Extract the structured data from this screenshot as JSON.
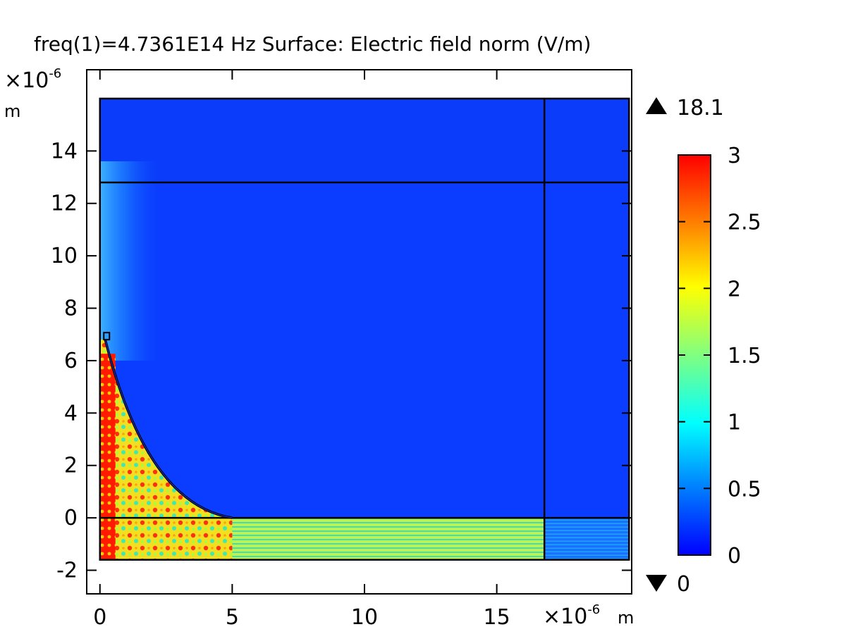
{
  "chart_data": {
    "type": "heatmap",
    "title": "freq(1)=4.7361E14 Hz  Surface: Electric field norm (V/m)",
    "x_axis": {
      "range": [
        -0.5,
        20.1
      ],
      "ticks": [
        0,
        5,
        10,
        15
      ],
      "tick_labels": [
        "0",
        "5",
        "10",
        "15"
      ],
      "scale_label": "×10",
      "scale_exponent": "-6",
      "unit": "m"
    },
    "y_axis": {
      "range": [
        -2.9,
        17.1
      ],
      "ticks": [
        -2,
        0,
        2,
        4,
        6,
        8,
        10,
        12,
        14
      ],
      "tick_labels": [
        "-2",
        "0",
        "2",
        "4",
        "6",
        "8",
        "10",
        "12",
        "14"
      ],
      "scale_label": "×10",
      "scale_exponent": "-6",
      "unit": "m"
    },
    "domain": {
      "x": [
        0,
        20
      ],
      "y": [
        -1.6,
        16
      ]
    },
    "geometry_lines": {
      "horizontal_y": [
        12.8,
        0
      ],
      "vertical_x": [
        16.8
      ],
      "arc": {
        "from": [
          0.2,
          6.8
        ],
        "to": [
          5,
          0
        ]
      }
    },
    "colorbar": {
      "min": 0,
      "max": 3,
      "ticks": [
        0,
        0.5,
        1,
        1.5,
        2,
        2.5,
        3
      ],
      "tick_labels": [
        "0",
        "0.5",
        "1",
        "1.5",
        "2",
        "2.5",
        "3"
      ],
      "data_max_label": "18.1",
      "data_min_label": "0",
      "colormap": "rainbow",
      "colors": [
        "#0000ff",
        "#0080ff",
        "#00ffff",
        "#80ff80",
        "#ffff00",
        "#ff8000",
        "#ff0000"
      ]
    },
    "grid": false
  }
}
